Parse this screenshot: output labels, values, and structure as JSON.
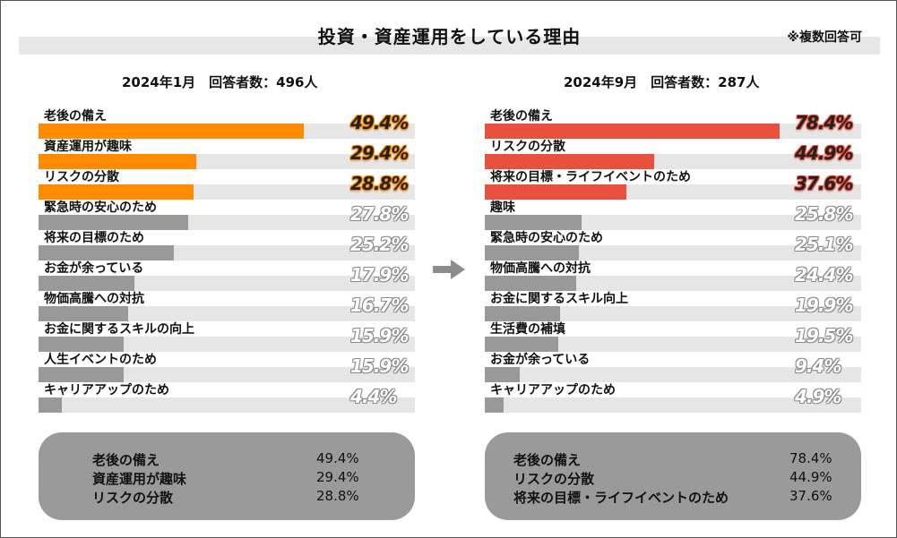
{
  "title": "投資・資産運用をしている理由",
  "note": "※複数回答可",
  "colors": {
    "orange": "#ff8c00",
    "red": "#e9503e",
    "gray": "#999999",
    "track": "#e6e6e6"
  },
  "chart_data": [
    {
      "type": "bar",
      "orientation": "horizontal",
      "title": "2024年1月　回答者数：496人",
      "categories": [
        "老後の備え",
        "資産運用が趣味",
        "リスクの分散",
        "緊急時の安心のため",
        "将来の目標のため",
        "お金が余っている",
        "物価高騰への対抗",
        "お金に関するスキルの向上",
        "人生イベントのため",
        "キャリアアップのため"
      ],
      "values": [
        49.4,
        29.4,
        28.8,
        27.8,
        25.2,
        17.9,
        16.7,
        15.9,
        15.9,
        4.4
      ],
      "value_labels": [
        "49.4%",
        "29.4%",
        "28.8%",
        "27.8%",
        "25.2%",
        "17.9%",
        "16.7%",
        "15.9%",
        "15.9%",
        "4.4%"
      ],
      "highlight_top": 3,
      "xlim": [
        0,
        70
      ]
    },
    {
      "type": "bar",
      "orientation": "horizontal",
      "title": "2024年9月　回答者数：287人",
      "categories": [
        "老後の備え",
        "リスクの分散",
        "将来の目標・ライフイベントのため",
        "趣味",
        "緊急時の安心のため",
        "物価高騰への対抗",
        "お金に関するスキル向上",
        "生活費の補填",
        "お金が余っている",
        "キャリアアップのため"
      ],
      "values": [
        78.4,
        44.9,
        37.6,
        25.8,
        25.1,
        24.4,
        19.9,
        19.5,
        9.4,
        4.9
      ],
      "value_labels": [
        "78.4%",
        "44.9%",
        "37.6%",
        "25.8%",
        "25.1%",
        "24.4%",
        "19.9%",
        "19.5%",
        "9.4%",
        "4.9%"
      ],
      "highlight_top": 3,
      "xlim": [
        0,
        100
      ]
    }
  ],
  "summary": [
    {
      "rows": [
        {
          "label": "老後の備え",
          "value": "49.4%"
        },
        {
          "label": "資産運用が趣味",
          "value": "29.4%"
        },
        {
          "label": "リスクの分散",
          "value": "28.8%"
        }
      ]
    },
    {
      "rows": [
        {
          "label": "老後の備え",
          "value": "78.4%"
        },
        {
          "label": "リスクの分散",
          "value": "44.9%"
        },
        {
          "label": "将来の目標・ライフイベントのため",
          "value": "37.6%"
        }
      ]
    }
  ]
}
